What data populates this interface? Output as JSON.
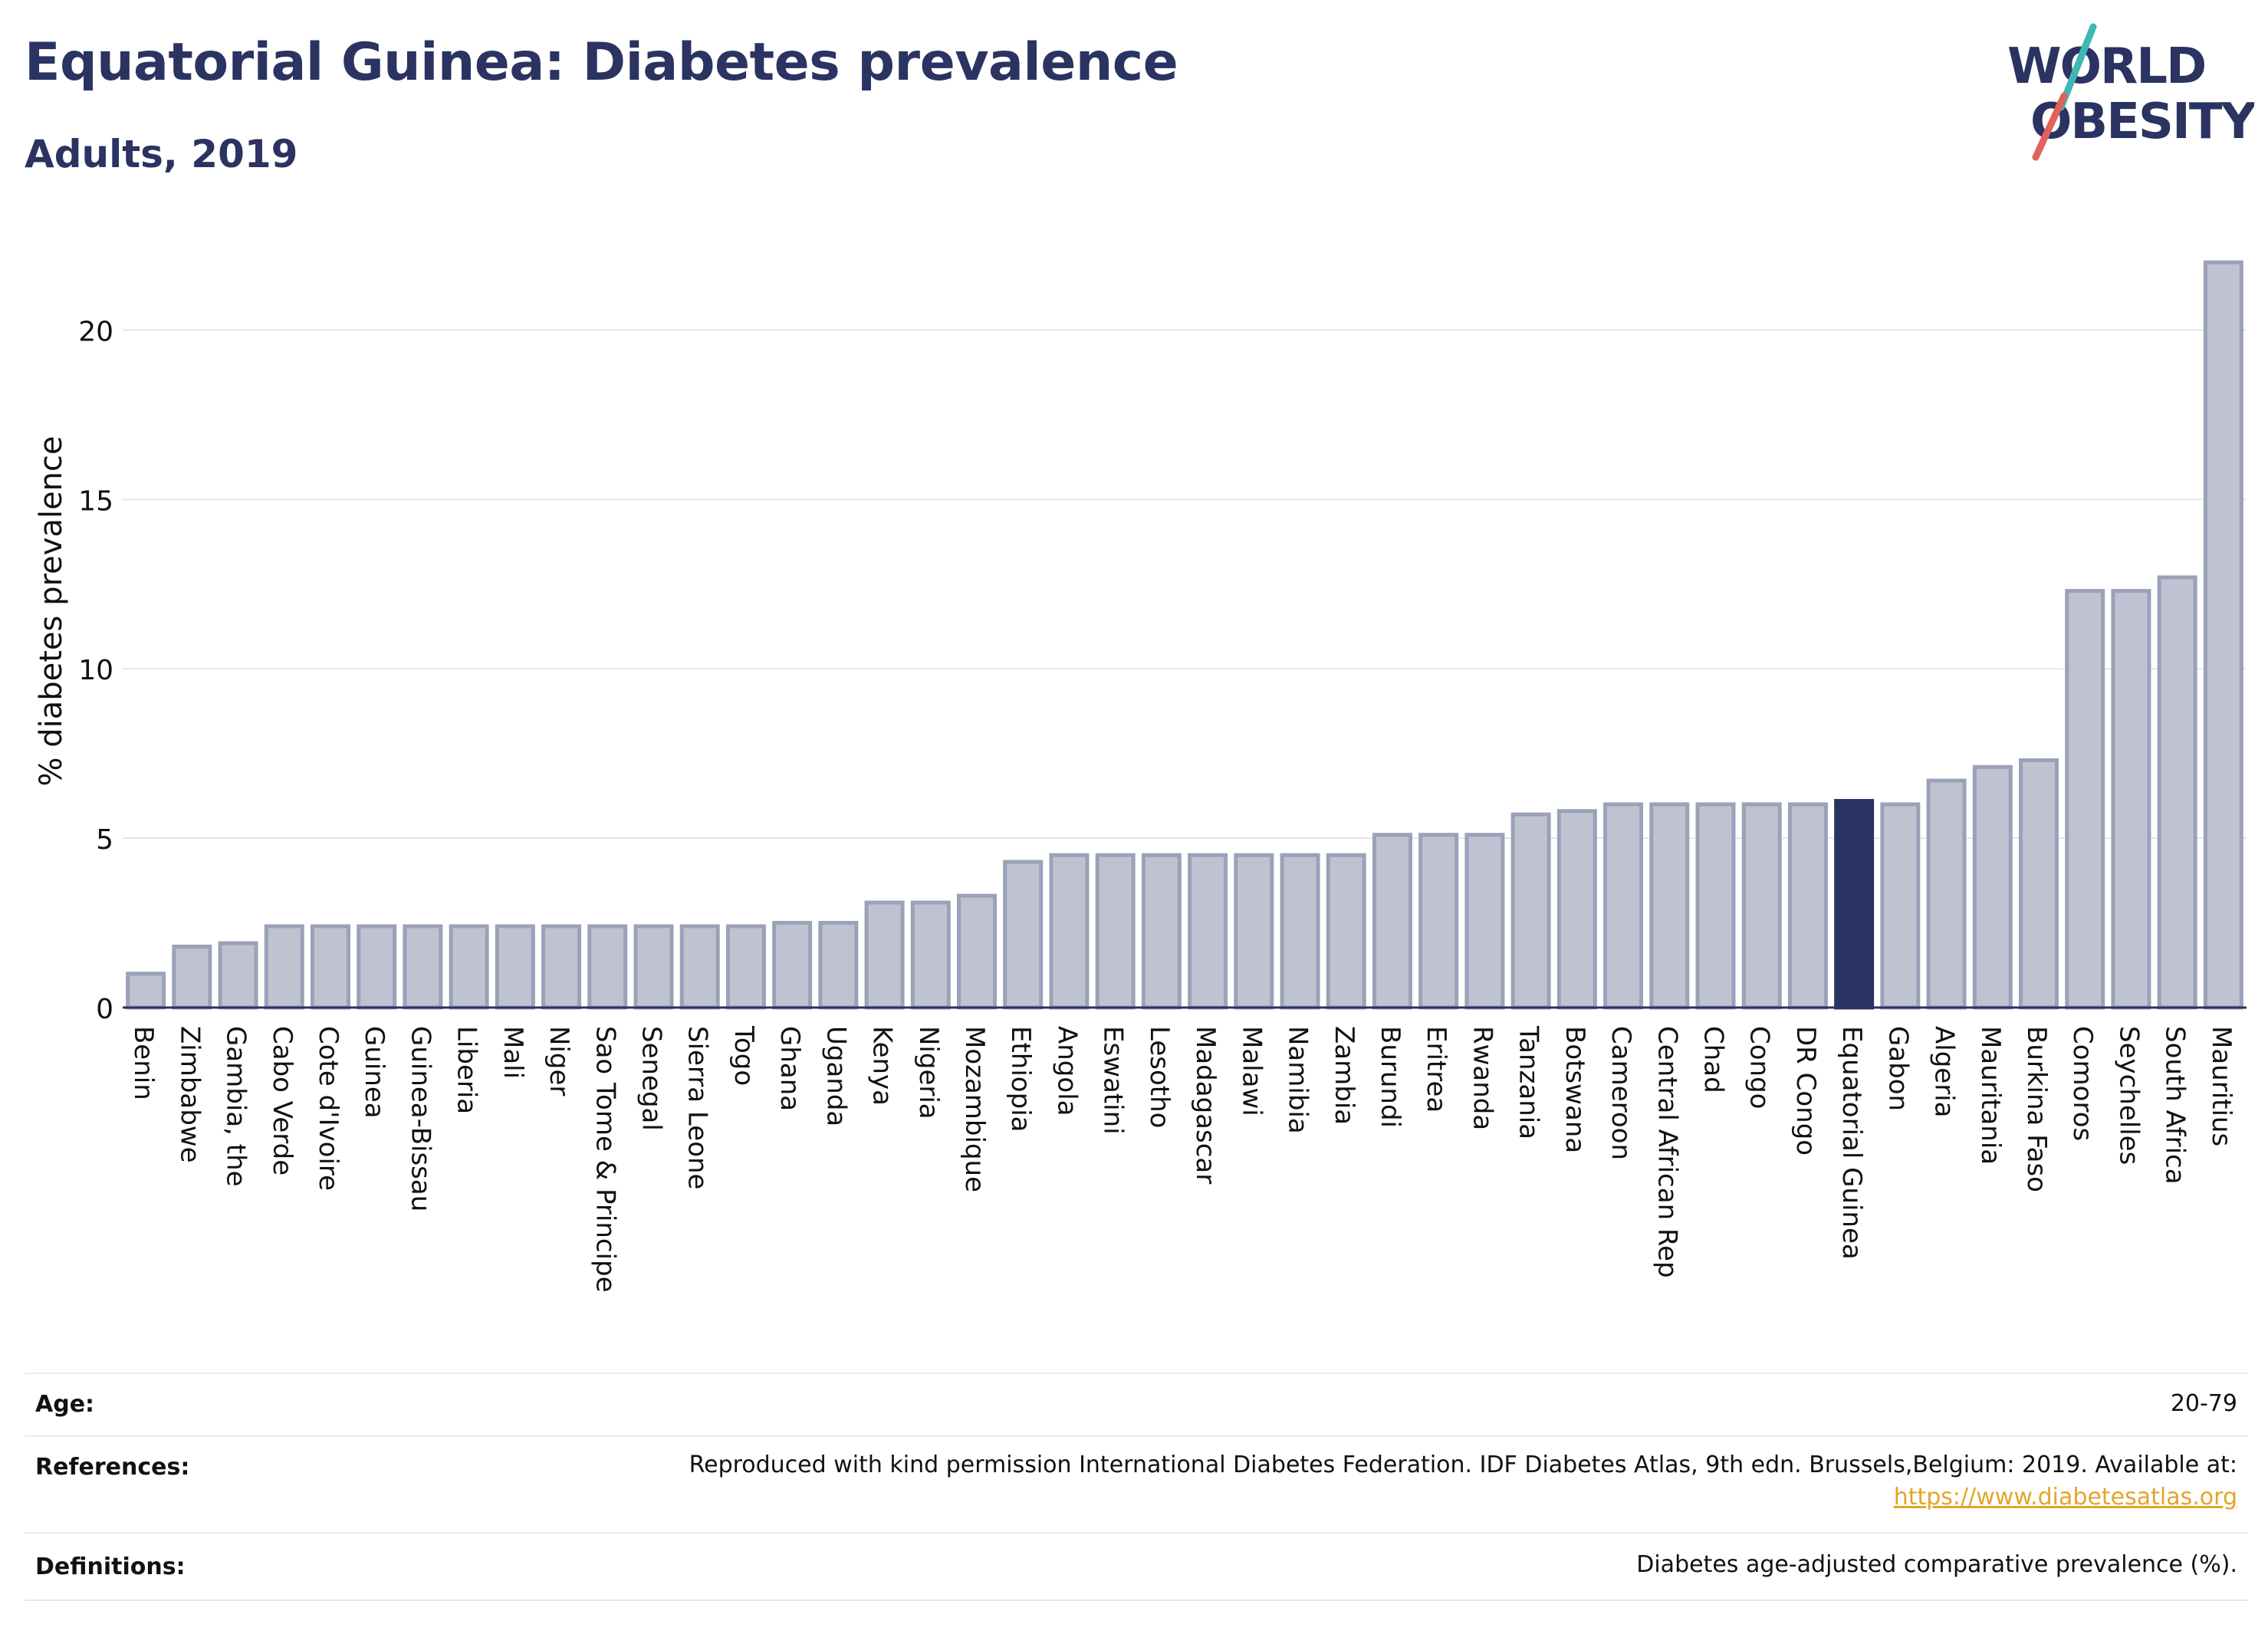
{
  "header": {
    "title": "Equatorial Guinea: Diabetes prevalence",
    "subtitle": "Adults, 2019"
  },
  "logo": {
    "line1": "WORLD",
    "line2": "OBESITY",
    "colors": {
      "text": "#2a3361",
      "slash_red": "#e2615a",
      "slash_teal": "#3fb7b5"
    }
  },
  "chart_data": {
    "type": "bar",
    "title": "",
    "xlabel": "",
    "ylabel": "% diabetes prevalence",
    "ylim": [
      0,
      22.5
    ],
    "yticks": [
      0,
      5,
      10,
      15,
      20
    ],
    "grid": true,
    "highlight": "Equatorial Guinea",
    "colors": {
      "bar": "#bfc3d1",
      "bar_border": "#9aa1b8",
      "highlight": "#2a3361",
      "grid": "#e4e6ec"
    },
    "categories": [
      "Benin",
      "Zimbabwe",
      "Gambia, the",
      "Cabo Verde",
      "Cote d'Ivoire",
      "Guinea",
      "Guinea-Bissau",
      "Liberia",
      "Mali",
      "Niger",
      "Sao Tome & Principe",
      "Senegal",
      "Sierra Leone",
      "Togo",
      "Ghana",
      "Uganda",
      "Kenya",
      "Nigeria",
      "Mozambique",
      "Ethiopia",
      "Angola",
      "Eswatini",
      "Lesotho",
      "Madagascar",
      "Malawi",
      "Namibia",
      "Zambia",
      "Burundi",
      "Eritrea",
      "Rwanda",
      "Tanzania",
      "Botswana",
      "Cameroon",
      "Central African Rep",
      "Chad",
      "Congo",
      "DR Congo",
      "Equatorial Guinea",
      "Gabon",
      "Algeria",
      "Mauritania",
      "Burkina Faso",
      "Comoros",
      "Seychelles",
      "South Africa",
      "Mauritius"
    ],
    "values": [
      1.0,
      1.8,
      1.9,
      2.4,
      2.4,
      2.4,
      2.4,
      2.4,
      2.4,
      2.4,
      2.4,
      2.4,
      2.4,
      2.4,
      2.5,
      2.5,
      3.1,
      3.1,
      3.3,
      4.3,
      4.5,
      4.5,
      4.5,
      4.5,
      4.5,
      4.5,
      4.5,
      5.1,
      5.1,
      5.1,
      5.7,
      5.8,
      6.0,
      6.0,
      6.0,
      6.0,
      6.0,
      6.1,
      6.0,
      6.7,
      7.1,
      7.3,
      12.3,
      12.3,
      12.7,
      22.0
    ]
  },
  "table": {
    "age_label": "Age:",
    "age_value": "20-79",
    "references_label": "References:",
    "references_text": "Reproduced with kind permission International Diabetes Federation. IDF Diabetes Atlas, 9th edn. Brussels,Belgium: 2019. Available at:",
    "references_link": "https://www.diabetesatlas.org",
    "definitions_label": "Definitions:",
    "definitions_value": "Diabetes age-adjusted comparative prevalence (%)."
  }
}
